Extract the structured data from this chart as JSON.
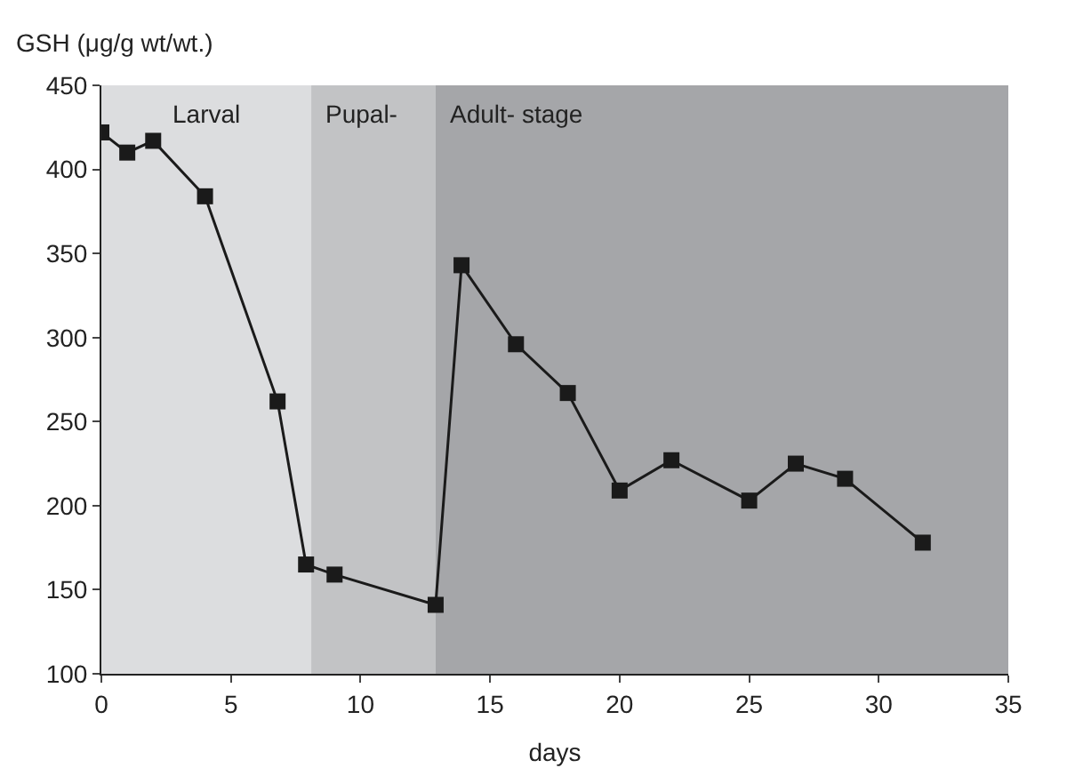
{
  "chart_data": {
    "type": "line",
    "xlabel": "days",
    "ylabel": "GSH (μg/g wt/wt.)",
    "x": [
      0,
      1,
      2,
      4,
      6.8,
      7.9,
      9,
      12.9,
      13.9,
      16,
      18,
      20,
      22,
      25,
      26.8,
      28.7,
      31.7
    ],
    "series": [
      {
        "color": "#1a1a1a",
        "values": [
          422,
          410,
          417,
          384,
          262,
          165,
          159,
          141,
          343,
          296,
          267,
          209,
          227,
          203,
          225,
          216,
          178
        ]
      }
    ],
    "xlim": [
      0,
      35
    ],
    "xticks": [
      0,
      5,
      10,
      15,
      20,
      25,
      30,
      35
    ],
    "ylim": [
      100,
      450
    ],
    "yticks": [
      100,
      150,
      200,
      250,
      300,
      350,
      400,
      450
    ],
    "bands": [
      {
        "axis": "x",
        "from": 0,
        "to": 8.1,
        "label": "Larval",
        "color": "#dcdddf"
      },
      {
        "axis": "x",
        "from": 8.1,
        "to": 12.9,
        "label": "Pupal-",
        "color": "#c2c3c5"
      },
      {
        "axis": "x",
        "from": 12.9,
        "to": 35,
        "label": "Adult- stage",
        "color": "#a5a6a9"
      }
    ],
    "marker": "square",
    "line_style": "solid",
    "grid": false,
    "legend": false
  }
}
